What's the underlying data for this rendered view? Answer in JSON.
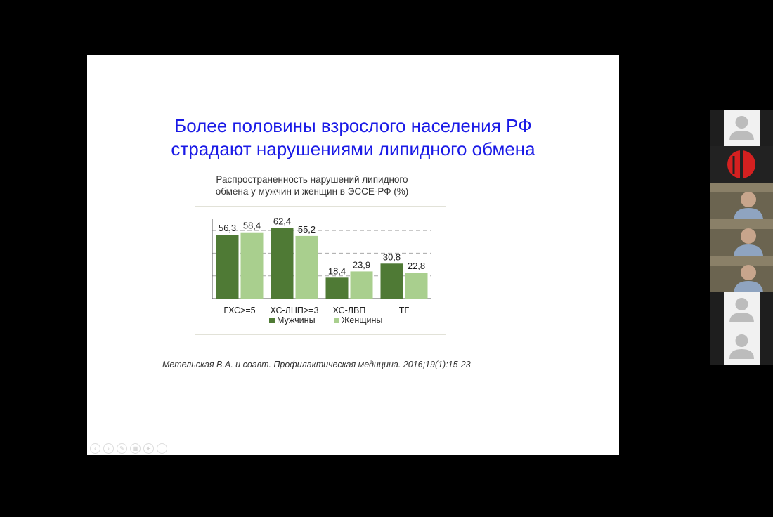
{
  "slide": {
    "title_line1": "Более половины взрослого населения РФ",
    "title_line2": "страдают нарушениями липидного обмена",
    "chart_subtitle_line1": "Распространенность нарушений липидного",
    "chart_subtitle_line2": "обмена у мужчин и женщин в ЭССЕ-РФ (%)",
    "citation": "Метельская В.А. и соавт. Профилактическая медицина. 2016;19(1):15-23"
  },
  "colors": {
    "title": "#1a1ae6",
    "men": "#4f7a35",
    "women": "#a9cf8e"
  },
  "chart_data": {
    "type": "bar",
    "categories": [
      "ГХС>=5",
      "ХС-ЛНП>=3",
      "ХС-ЛВП",
      "ТГ"
    ],
    "series": [
      {
        "name": "Мужчины",
        "values": [
          56.3,
          62.4,
          18.4,
          30.8
        ],
        "labels": [
          "56,3",
          "62,4",
          "18,4",
          "30,8"
        ]
      },
      {
        "name": "Женщины",
        "values": [
          58.4,
          55.2,
          23.9,
          22.8
        ],
        "labels": [
          "58,4",
          "55,2",
          "23,9",
          "22,8"
        ]
      }
    ],
    "ylim": [
      0,
      70
    ],
    "grid": true,
    "legend": "bottom"
  },
  "participants": [
    {
      "kind": "avatar",
      "icon": "user-avatar-icon"
    },
    {
      "kind": "logo",
      "icon": "organization-logo-icon"
    },
    {
      "kind": "video"
    },
    {
      "kind": "video"
    },
    {
      "kind": "video"
    },
    {
      "kind": "avatar",
      "icon": "user-avatar-icon"
    },
    {
      "kind": "avatar",
      "icon": "user-avatar-icon"
    }
  ],
  "nav_buttons": [
    {
      "icon": "previous-icon",
      "glyph": "‹"
    },
    {
      "icon": "next-icon",
      "glyph": "›"
    },
    {
      "icon": "pen-icon",
      "glyph": "✎"
    },
    {
      "icon": "slides-icon",
      "glyph": "▦"
    },
    {
      "icon": "zoom-icon",
      "glyph": "⊕"
    },
    {
      "icon": "more-icon",
      "glyph": "…"
    }
  ]
}
